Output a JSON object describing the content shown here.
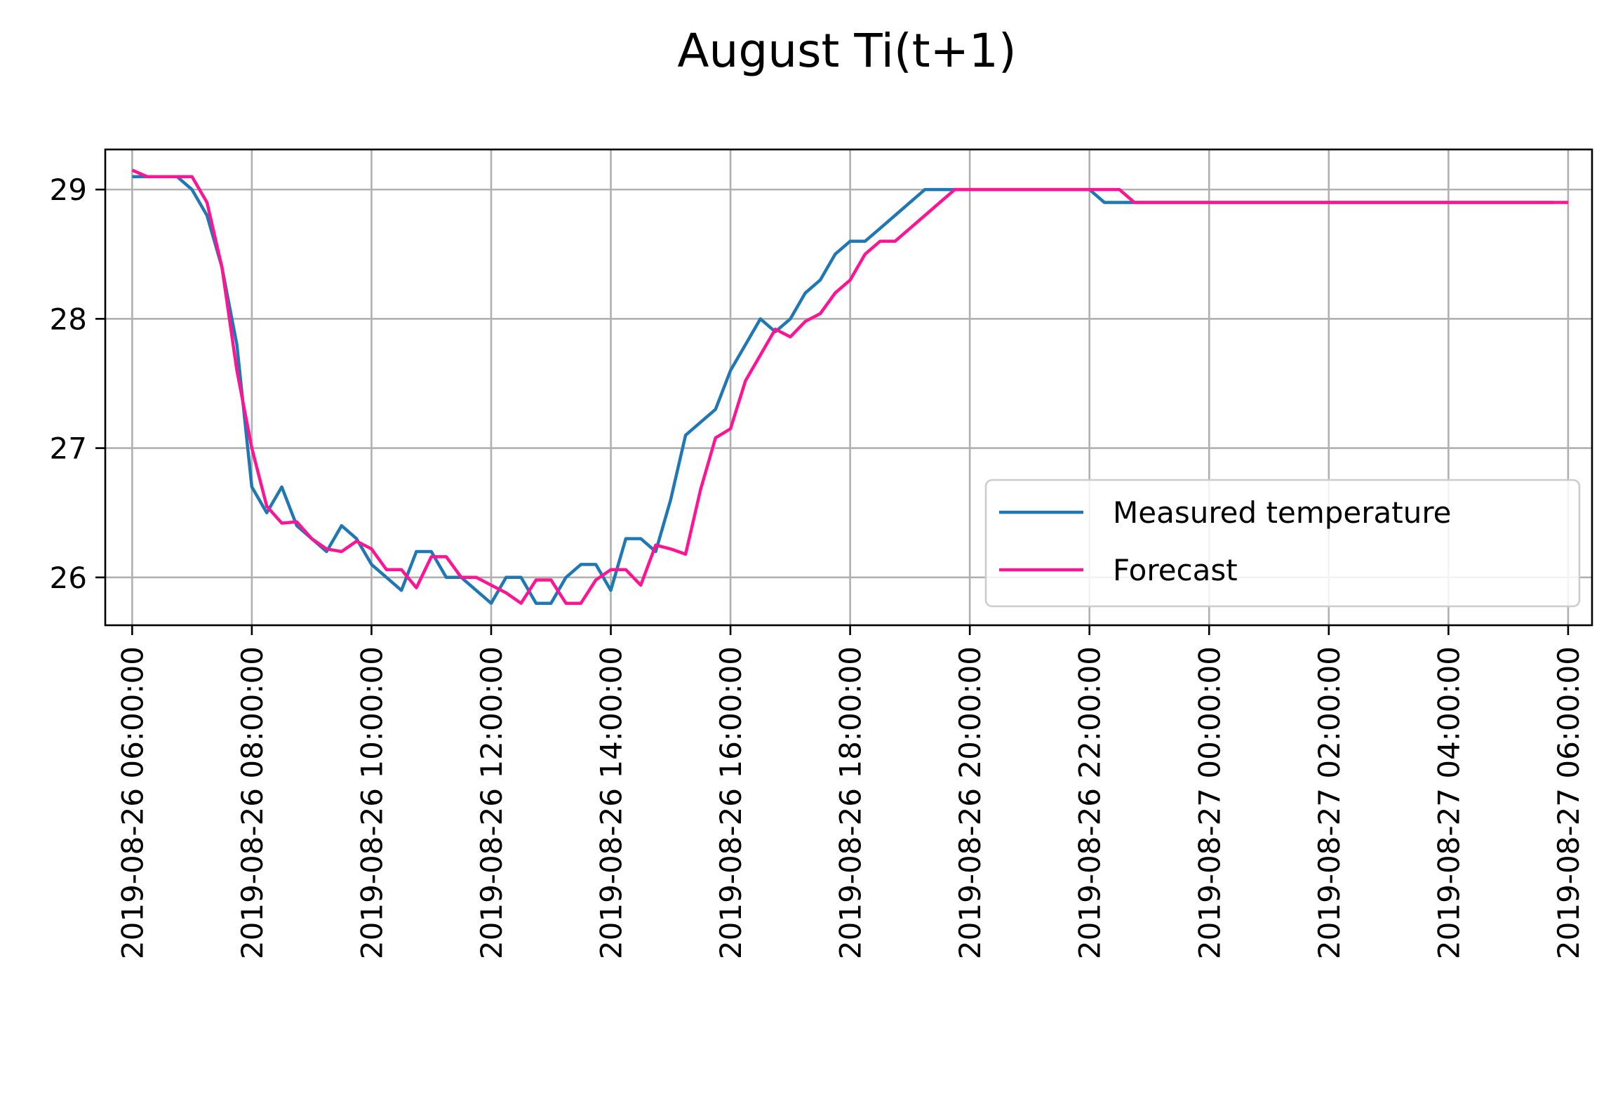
{
  "chart_data": {
    "type": "line",
    "title": "August Ti(t+1)",
    "xlabel": "",
    "ylabel": "",
    "grid": true,
    "legend_position": "lower right",
    "x_start": "2019-08-26 06:00:00",
    "x_step_minutes": 15,
    "xlim": [
      "2019-08-26 05:33:00",
      "2019-08-27 06:24:00"
    ],
    "ylim": [
      25.63,
      29.31
    ],
    "y_ticks": [
      26,
      27,
      28,
      29
    ],
    "y_tick_labels": [
      "26",
      "27",
      "28",
      "29"
    ],
    "x_ticks": [
      "2019-08-26 06:00:00",
      "2019-08-26 08:00:00",
      "2019-08-26 10:00:00",
      "2019-08-26 12:00:00",
      "2019-08-26 14:00:00",
      "2019-08-26 16:00:00",
      "2019-08-26 18:00:00",
      "2019-08-26 20:00:00",
      "2019-08-26 22:00:00",
      "2019-08-27 00:00:00",
      "2019-08-27 02:00:00",
      "2019-08-27 04:00:00",
      "2019-08-27 06:00:00"
    ],
    "x_tick_labels": [
      "2019-08-26 06:00:00",
      "2019-08-26 08:00:00",
      "2019-08-26 10:00:00",
      "2019-08-26 12:00:00",
      "2019-08-26 14:00:00",
      "2019-08-26 16:00:00",
      "2019-08-26 18:00:00",
      "2019-08-26 20:00:00",
      "2019-08-26 22:00:00",
      "2019-08-27 00:00:00",
      "2019-08-27 02:00:00",
      "2019-08-27 04:00:00",
      "2019-08-27 06:00:00"
    ],
    "series": [
      {
        "name": "Measured temperature",
        "color": "#1f77b4",
        "values": [
          29.1,
          29.1,
          29.1,
          29.1,
          29.0,
          28.8,
          28.4,
          27.8,
          26.7,
          26.5,
          26.7,
          26.4,
          26.3,
          26.2,
          26.4,
          26.3,
          26.1,
          26.0,
          25.9,
          26.2,
          26.2,
          26.0,
          26.0,
          25.9,
          25.8,
          26.0,
          26.0,
          25.8,
          25.8,
          26.0,
          26.1,
          26.1,
          25.9,
          26.3,
          26.3,
          26.2,
          26.6,
          27.1,
          27.2,
          27.3,
          27.6,
          27.8,
          28.0,
          27.9,
          28.0,
          28.2,
          28.3,
          28.5,
          28.6,
          28.6,
          28.7,
          28.8,
          28.9,
          29.0,
          29.0,
          29.0,
          29.0,
          29.0,
          29.0,
          29.0,
          29.0,
          29.0,
          29.0,
          29.0,
          29.0,
          28.9,
          28.9,
          28.9,
          28.9,
          28.9,
          28.9,
          28.9,
          28.9,
          28.9,
          28.9,
          28.9,
          28.9,
          28.9,
          28.9,
          28.9,
          28.9,
          28.9,
          28.9,
          28.9,
          28.9,
          28.9,
          28.9,
          28.9,
          28.9,
          28.9,
          28.9,
          28.9,
          28.9,
          28.9,
          28.9,
          28.9
        ]
      },
      {
        "name": "Forecast",
        "color": "#ff1493",
        "values": [
          29.15,
          29.1,
          29.1,
          29.1,
          29.1,
          28.9,
          28.4,
          27.6,
          27.0,
          26.55,
          26.42,
          26.43,
          26.3,
          26.22,
          26.2,
          26.28,
          26.22,
          26.06,
          26.06,
          25.92,
          26.16,
          26.16,
          26.0,
          26.0,
          25.94,
          25.88,
          25.8,
          25.98,
          25.98,
          25.8,
          25.8,
          25.98,
          26.06,
          26.06,
          25.94,
          26.25,
          26.22,
          26.18,
          26.68,
          27.08,
          27.15,
          27.52,
          27.72,
          27.92,
          27.86,
          27.98,
          28.04,
          28.2,
          28.3,
          28.5,
          28.6,
          28.6,
          28.7,
          28.8,
          28.9,
          29.0,
          29.0,
          29.0,
          29.0,
          29.0,
          29.0,
          29.0,
          29.0,
          29.0,
          29.0,
          29.0,
          29.0,
          28.9,
          28.9,
          28.9,
          28.9,
          28.9,
          28.9,
          28.9,
          28.9,
          28.9,
          28.9,
          28.9,
          28.9,
          28.9,
          28.9,
          28.9,
          28.9,
          28.9,
          28.9,
          28.9,
          28.9,
          28.9,
          28.9,
          28.9,
          28.9,
          28.9,
          28.9,
          28.9,
          28.9,
          28.9,
          28.9
        ]
      }
    ]
  }
}
